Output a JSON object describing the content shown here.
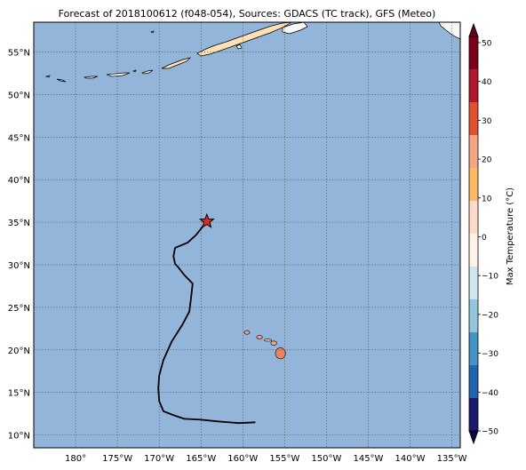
{
  "title": "Forecast of 2018100612 (f048-054), Sources: GDACS (TC track), GFS (Meteo)",
  "map": {
    "lon_range": [
      -185,
      -134
    ],
    "lat_range": [
      8.5,
      58.5
    ],
    "ocean_color": "#93b5da",
    "land_color_cold": "#f7f7f7",
    "land_color_warm": "#fde0b4",
    "grid_style": "dotted",
    "lat_ticks": [
      {
        "value": 55,
        "label": "55°N"
      },
      {
        "value": 50,
        "label": "50°N"
      },
      {
        "value": 45,
        "label": "45°N"
      },
      {
        "value": 40,
        "label": "40°N"
      },
      {
        "value": 35,
        "label": "35°N"
      },
      {
        "value": 30,
        "label": "30°N"
      },
      {
        "value": 25,
        "label": "25°N"
      },
      {
        "value": 20,
        "label": "20°N"
      },
      {
        "value": 15,
        "label": "15°N"
      },
      {
        "value": 10,
        "label": "10°N"
      }
    ],
    "lon_ticks": [
      {
        "value": -180,
        "label": "180°"
      },
      {
        "value": -175,
        "label": "175°W"
      },
      {
        "value": -170,
        "label": "170°W"
      },
      {
        "value": -165,
        "label": "165°W"
      },
      {
        "value": -160,
        "label": "160°W"
      },
      {
        "value": -155,
        "label": "155°W"
      },
      {
        "value": -150,
        "label": "150°W"
      },
      {
        "value": -145,
        "label": "145°W"
      },
      {
        "value": -140,
        "label": "140°W"
      },
      {
        "value": -135,
        "label": "135°W"
      }
    ],
    "track": [
      [
        -158.5,
        11.5
      ],
      [
        -160.5,
        11.4
      ],
      [
        -163.0,
        11.6
      ],
      [
        -165.0,
        11.8
      ],
      [
        -167.0,
        11.9
      ],
      [
        -168.2,
        12.3
      ],
      [
        -169.5,
        12.8
      ],
      [
        -170.0,
        14.0
      ],
      [
        -170.1,
        15.5
      ],
      [
        -170.0,
        17.0
      ],
      [
        -169.5,
        18.8
      ],
      [
        -168.5,
        21.0
      ],
      [
        -167.2,
        23.0
      ],
      [
        -166.4,
        24.5
      ],
      [
        -166.2,
        26.0
      ],
      [
        -166.0,
        27.8
      ],
      [
        -167.0,
        28.8
      ],
      [
        -167.8,
        29.8
      ],
      [
        -168.1,
        30.1
      ],
      [
        -168.3,
        31.0
      ],
      [
        -168.1,
        32.0
      ],
      [
        -166.6,
        32.6
      ],
      [
        -165.6,
        33.5
      ],
      [
        -164.3,
        35.1
      ]
    ],
    "current_position": {
      "lon": -164.3,
      "lat": 35.1,
      "color": "#e8251f"
    },
    "hawaii_islands": [
      {
        "name": "Kauai",
        "lon": -159.5,
        "lat": 22.05,
        "rx": 0.32,
        "ry": 0.22,
        "color": "#f4a582"
      },
      {
        "name": "Oahu",
        "lon": -158.0,
        "lat": 21.5,
        "rx": 0.35,
        "ry": 0.2,
        "color": "#f4a582"
      },
      {
        "name": "Molokai",
        "lon": -157.0,
        "lat": 21.15,
        "rx": 0.45,
        "ry": 0.12,
        "color": "#fddbc7"
      },
      {
        "name": "Maui",
        "lon": -156.3,
        "lat": 20.8,
        "rx": 0.35,
        "ry": 0.25,
        "color": "#f4a582"
      },
      {
        "name": "Big Island",
        "lon": -155.5,
        "lat": 19.6,
        "rx": 0.6,
        "ry": 0.65,
        "color": "#e98566"
      }
    ]
  },
  "colorbar": {
    "label": "Max Temperature (°C)",
    "min": -50,
    "max": 50,
    "ticks": [
      "50",
      "40",
      "30",
      "20",
      "10",
      "0",
      "−10",
      "−20",
      "−30",
      "−40",
      "−50"
    ],
    "bands": [
      "#1a1a6e",
      "#2166ac",
      "#4393c3",
      "#92c5de",
      "#d1e5f0",
      "#fdf3e7",
      "#fddbc7",
      "#fdb863",
      "#f4a582",
      "#e0522f",
      "#b2182b",
      "#7a0019"
    ],
    "top_arrow_color": "#67001f",
    "bottom_arrow_color": "#08083a"
  }
}
